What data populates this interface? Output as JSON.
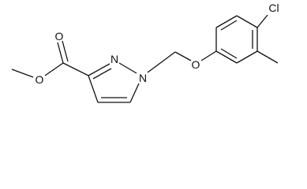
{
  "atoms": [
    {
      "label": "O"
    },
    {
      "label": "O"
    },
    {
      "label": "N"
    },
    {
      "label": "N"
    },
    {
      "label": "O"
    },
    {
      "label": "Cl"
    }
  ]
}
